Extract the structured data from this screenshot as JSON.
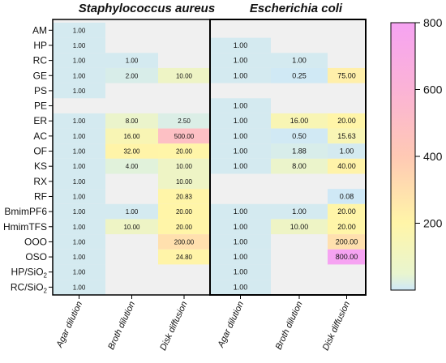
{
  "chart_data": {
    "type": "heatmap",
    "titles": [
      "Staphylococcus aureus",
      "Escherichia coli"
    ],
    "rows": [
      "AM",
      "HP",
      "RC",
      "GE",
      "PS",
      "PE",
      "ER",
      "AC",
      "OF",
      "KS",
      "RX",
      "RF",
      "BmimPF6",
      "HmimTFS",
      "OOO",
      "OSO",
      "HP/SiO2",
      "RC/SiO2"
    ],
    "columns": [
      "Agar dilution",
      "Broth dilution",
      "Disk diffusion",
      "Agar dilution",
      "Broth dilution",
      "Disk diffusion"
    ],
    "values": [
      [
        "1.00",
        "",
        "",
        "",
        "",
        ""
      ],
      [
        "1.00",
        "",
        "",
        "1.00",
        "",
        ""
      ],
      [
        "1.00",
        "1.00",
        "",
        "1.00",
        "1.00",
        ""
      ],
      [
        "1.00",
        "2.00",
        "10.00",
        "1.00",
        "0.25",
        "75.00"
      ],
      [
        "1.00",
        "",
        "",
        "",
        "",
        ""
      ],
      [
        "",
        "",
        "",
        "1.00",
        "",
        ""
      ],
      [
        "1.00",
        "8.00",
        "2.50",
        "1.00",
        "16.00",
        "20.00"
      ],
      [
        "1.00",
        "16.00",
        "500.00",
        "1.00",
        "0.50",
        "15.63"
      ],
      [
        "1.00",
        "32.00",
        "20.00",
        "1.00",
        "1.88",
        "1.00"
      ],
      [
        "1.00",
        "4.00",
        "10.00",
        "1.00",
        "8.00",
        "40.00"
      ],
      [
        "1.00",
        "",
        "10.00",
        "",
        "",
        ""
      ],
      [
        "1.00",
        "",
        "20.83",
        "",
        "",
        "0.08"
      ],
      [
        "1.00",
        "1.00",
        "20.00",
        "1.00",
        "1.00",
        "20.00"
      ],
      [
        "1.00",
        "10.00",
        "20.00",
        "1.00",
        "10.00",
        "20.00"
      ],
      [
        "1.00",
        "",
        "200.00",
        "1.00",
        "",
        "200.00"
      ],
      [
        "1.00",
        "",
        "24.80",
        "1.00",
        "",
        "800.00"
      ],
      [
        "1.00",
        "",
        "",
        "1.00",
        "",
        ""
      ],
      [
        "1.00",
        "",
        "",
        "1.00",
        "",
        ""
      ]
    ],
    "colorbar": {
      "range": [
        0,
        800
      ],
      "ticks": [
        200,
        400,
        600,
        800
      ],
      "colors": [
        "#cfe8f7",
        "#fff5a8",
        "#ffc9b4",
        "#f6a3f2"
      ]
    },
    "missing_color": "#f0f0f0",
    "grid": false,
    "xlabel": "",
    "ylabel": ""
  }
}
